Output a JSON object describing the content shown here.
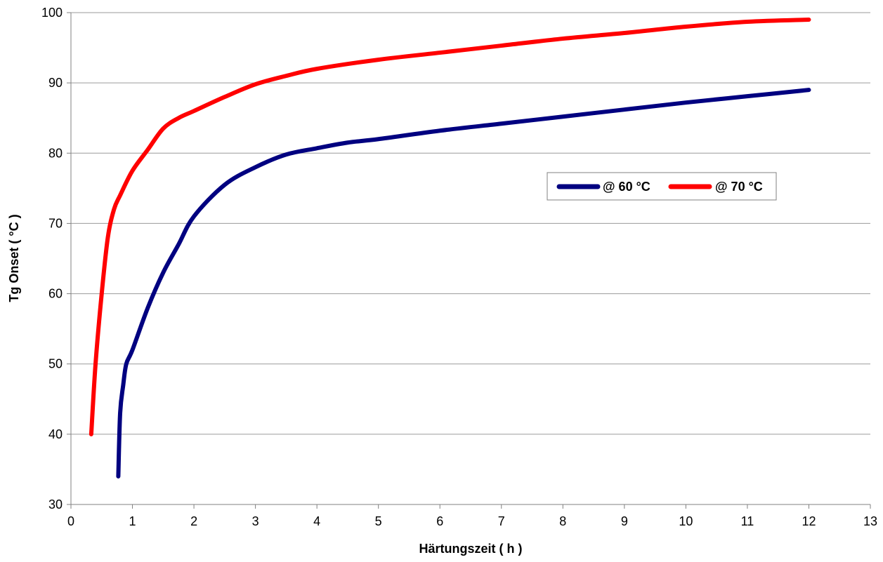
{
  "chart_data": {
    "type": "line",
    "title": "",
    "xlabel": "Härtungszeit ( h )",
    "ylabel": "Tg Onset ( °C )",
    "xlim": [
      0,
      13
    ],
    "ylim": [
      30,
      100
    ],
    "x_ticks": [
      0,
      1,
      2,
      3,
      4,
      5,
      6,
      7,
      8,
      9,
      10,
      11,
      12,
      13
    ],
    "y_ticks": [
      30,
      40,
      50,
      60,
      70,
      80,
      90,
      100
    ],
    "grid": "horizontal",
    "legend_position": "center-right",
    "series": [
      {
        "name": "@ 60 °C",
        "color": "#000080",
        "x": [
          0.77,
          0.8,
          0.85,
          0.9,
          1.0,
          1.25,
          1.5,
          1.75,
          2.0,
          2.5,
          3.0,
          3.5,
          4.0,
          4.5,
          5.0,
          6.0,
          7.0,
          8.0,
          9.0,
          10.0,
          11.0,
          12.0
        ],
        "y": [
          34,
          43,
          47,
          50,
          52,
          58,
          63,
          67,
          71,
          75.5,
          78,
          79.8,
          80.7,
          81.5,
          82,
          83.2,
          84.2,
          85.2,
          86.2,
          87.2,
          88.1,
          89
        ]
      },
      {
        "name": "@ 70 °C",
        "color": "#ff0000",
        "x": [
          0.33,
          0.4,
          0.5,
          0.6,
          0.7,
          0.8,
          1.0,
          1.25,
          1.5,
          1.75,
          2.0,
          2.5,
          3.0,
          3.5,
          4.0,
          5.0,
          6.0,
          7.0,
          8.0,
          9.0,
          10.0,
          11.0,
          12.0
        ],
        "y": [
          40,
          50,
          60,
          68,
          72,
          74,
          77.5,
          80.5,
          83.5,
          85,
          86,
          88,
          89.8,
          91,
          92,
          93.3,
          94.3,
          95.3,
          96.3,
          97.1,
          98,
          98.7,
          99
        ]
      }
    ]
  }
}
